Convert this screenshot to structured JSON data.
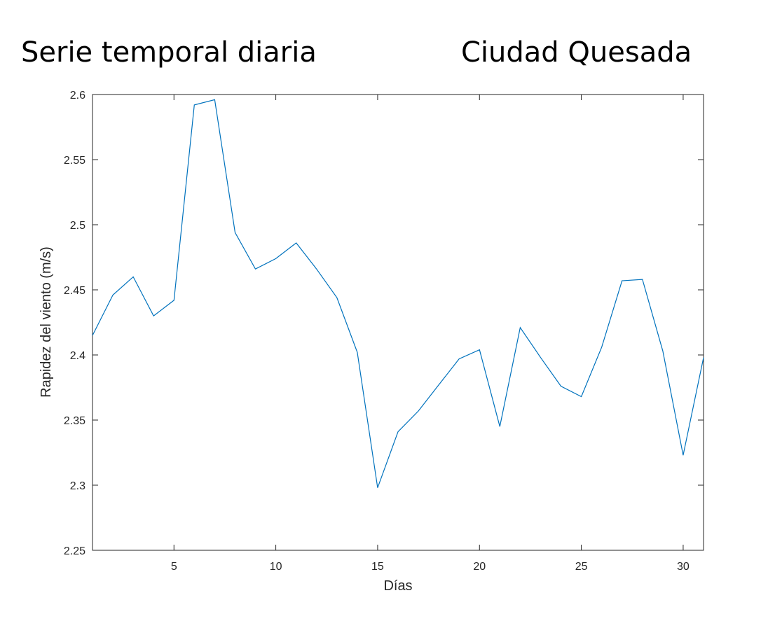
{
  "header": {
    "title_left": "Serie temporal diaria",
    "title_right": "Ciudad Quesada"
  },
  "chart_data": {
    "type": "line",
    "xlabel": "Días",
    "ylabel": "Rapidez del viento (m/s)",
    "xlim": [
      1,
      31
    ],
    "ylim": [
      2.25,
      2.6
    ],
    "xticks": [
      5,
      10,
      15,
      20,
      25,
      30
    ],
    "yticks": [
      2.25,
      2.3,
      2.35,
      2.4,
      2.45,
      2.5,
      2.55,
      2.6
    ],
    "ytick_labels": [
      "2.25",
      "2.3",
      "2.35",
      "2.4",
      "2.45",
      "2.5",
      "2.55",
      "2.6"
    ],
    "grid": false,
    "series": [
      {
        "color": "#0072BD",
        "x": [
          1,
          2,
          3,
          4,
          5,
          6,
          7,
          8,
          9,
          10,
          11,
          12,
          13,
          14,
          15,
          16,
          17,
          18,
          19,
          20,
          21,
          22,
          23,
          24,
          25,
          26,
          27,
          28,
          29,
          30,
          31
        ],
        "values": [
          2.415,
          2.446,
          2.46,
          2.43,
          2.442,
          2.592,
          2.596,
          2.494,
          2.466,
          2.474,
          2.486,
          2.466,
          2.444,
          2.402,
          2.298,
          2.341,
          2.357,
          2.377,
          2.397,
          2.404,
          2.345,
          2.421,
          2.398,
          2.376,
          2.368,
          2.406,
          2.457,
          2.458,
          2.403,
          2.323,
          2.398
        ]
      }
    ]
  }
}
